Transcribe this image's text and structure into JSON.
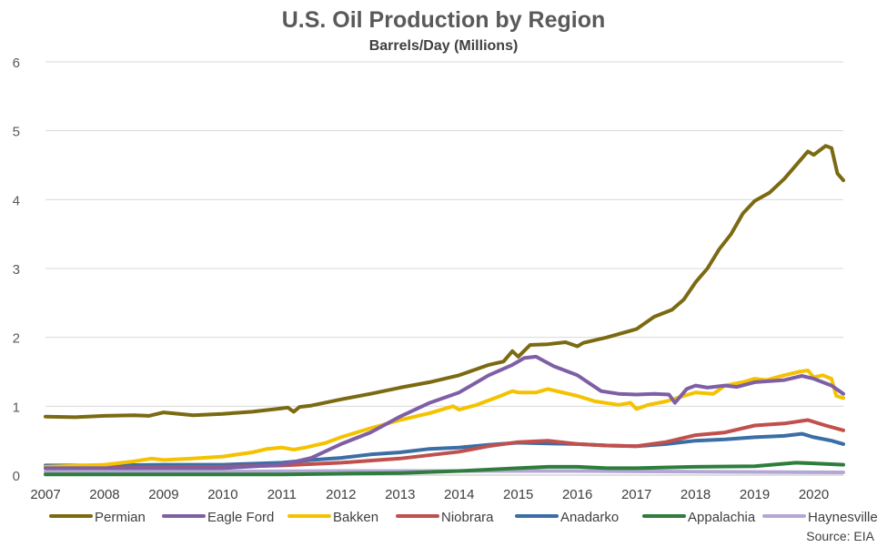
{
  "chart_data": {
    "type": "line",
    "title": "U.S. Oil Production by Region",
    "subtitle": "Barrels/Day (Millions)",
    "source": "Source: EIA",
    "xlim": [
      2007,
      2020.5
    ],
    "ylim": [
      0,
      6
    ],
    "x_ticks": [
      "2007",
      "2008",
      "2009",
      "2010",
      "2011",
      "2012",
      "2013",
      "2014",
      "2015",
      "2016",
      "2017",
      "2018",
      "2019",
      "2020"
    ],
    "y_ticks": [
      "6",
      "5",
      "4",
      "3",
      "2",
      "1",
      "0"
    ],
    "grid": true,
    "legend": "bottom",
    "series": [
      {
        "name": "Permian",
        "color": "#7a6a12",
        "points": [
          [
            2007.0,
            0.85
          ],
          [
            2007.5,
            0.84
          ],
          [
            2008.0,
            0.86
          ],
          [
            2008.5,
            0.87
          ],
          [
            2008.75,
            0.86
          ],
          [
            2009.0,
            0.91
          ],
          [
            2009.5,
            0.87
          ],
          [
            2010.0,
            0.89
          ],
          [
            2010.5,
            0.92
          ],
          [
            2011.0,
            0.97
          ],
          [
            2011.1,
            0.98
          ],
          [
            2011.2,
            0.92
          ],
          [
            2011.3,
            0.99
          ],
          [
            2011.5,
            1.01
          ],
          [
            2012.0,
            1.1
          ],
          [
            2012.5,
            1.18
          ],
          [
            2013.0,
            1.27
          ],
          [
            2013.5,
            1.35
          ],
          [
            2014.0,
            1.45
          ],
          [
            2014.5,
            1.6
          ],
          [
            2014.75,
            1.65
          ],
          [
            2014.9,
            1.8
          ],
          [
            2015.0,
            1.72
          ],
          [
            2015.2,
            1.89
          ],
          [
            2015.5,
            1.9
          ],
          [
            2015.8,
            1.93
          ],
          [
            2016.0,
            1.87
          ],
          [
            2016.1,
            1.92
          ],
          [
            2016.5,
            2.0
          ],
          [
            2017.0,
            2.12
          ],
          [
            2017.3,
            2.3
          ],
          [
            2017.6,
            2.4
          ],
          [
            2017.8,
            2.55
          ],
          [
            2018.0,
            2.8
          ],
          [
            2018.2,
            3.0
          ],
          [
            2018.4,
            3.28
          ],
          [
            2018.6,
            3.5
          ],
          [
            2018.8,
            3.8
          ],
          [
            2019.0,
            3.98
          ],
          [
            2019.25,
            4.1
          ],
          [
            2019.5,
            4.3
          ],
          [
            2019.75,
            4.55
          ],
          [
            2019.9,
            4.7
          ],
          [
            2020.0,
            4.65
          ],
          [
            2020.2,
            4.78
          ],
          [
            2020.3,
            4.75
          ],
          [
            2020.4,
            4.38
          ],
          [
            2020.5,
            4.28
          ]
        ]
      },
      {
        "name": "Eagle Ford",
        "color": "#7e5fa6",
        "points": [
          [
            2007.0,
            0.1
          ],
          [
            2009.0,
            0.1
          ],
          [
            2010.0,
            0.1
          ],
          [
            2011.0,
            0.15
          ],
          [
            2011.5,
            0.25
          ],
          [
            2012.0,
            0.45
          ],
          [
            2012.5,
            0.62
          ],
          [
            2013.0,
            0.85
          ],
          [
            2013.5,
            1.05
          ],
          [
            2014.0,
            1.2
          ],
          [
            2014.5,
            1.45
          ],
          [
            2014.9,
            1.6
          ],
          [
            2015.1,
            1.7
          ],
          [
            2015.3,
            1.72
          ],
          [
            2015.6,
            1.58
          ],
          [
            2016.0,
            1.45
          ],
          [
            2016.4,
            1.22
          ],
          [
            2016.7,
            1.18
          ],
          [
            2017.0,
            1.17
          ],
          [
            2017.3,
            1.18
          ],
          [
            2017.55,
            1.17
          ],
          [
            2017.65,
            1.05
          ],
          [
            2017.85,
            1.25
          ],
          [
            2018.0,
            1.3
          ],
          [
            2018.2,
            1.27
          ],
          [
            2018.5,
            1.3
          ],
          [
            2018.7,
            1.28
          ],
          [
            2019.0,
            1.35
          ],
          [
            2019.5,
            1.38
          ],
          [
            2019.8,
            1.44
          ],
          [
            2020.0,
            1.4
          ],
          [
            2020.3,
            1.3
          ],
          [
            2020.5,
            1.18
          ]
        ]
      },
      {
        "name": "Bakken",
        "color": "#f5c200",
        "points": [
          [
            2007.0,
            0.12
          ],
          [
            2008.0,
            0.15
          ],
          [
            2008.5,
            0.2
          ],
          [
            2008.8,
            0.24
          ],
          [
            2009.0,
            0.22
          ],
          [
            2009.5,
            0.24
          ],
          [
            2010.0,
            0.27
          ],
          [
            2010.5,
            0.33
          ],
          [
            2010.75,
            0.38
          ],
          [
            2011.0,
            0.4
          ],
          [
            2011.2,
            0.37
          ],
          [
            2011.4,
            0.4
          ],
          [
            2011.75,
            0.47
          ],
          [
            2012.0,
            0.55
          ],
          [
            2012.5,
            0.68
          ],
          [
            2013.0,
            0.8
          ],
          [
            2013.5,
            0.9
          ],
          [
            2013.9,
            1.0
          ],
          [
            2014.0,
            0.95
          ],
          [
            2014.3,
            1.02
          ],
          [
            2014.7,
            1.15
          ],
          [
            2014.9,
            1.22
          ],
          [
            2015.0,
            1.2
          ],
          [
            2015.3,
            1.2
          ],
          [
            2015.5,
            1.25
          ],
          [
            2016.0,
            1.15
          ],
          [
            2016.3,
            1.07
          ],
          [
            2016.7,
            1.02
          ],
          [
            2016.9,
            1.05
          ],
          [
            2017.0,
            0.96
          ],
          [
            2017.2,
            1.02
          ],
          [
            2017.5,
            1.07
          ],
          [
            2017.8,
            1.15
          ],
          [
            2018.0,
            1.2
          ],
          [
            2018.3,
            1.18
          ],
          [
            2018.5,
            1.3
          ],
          [
            2018.8,
            1.35
          ],
          [
            2019.0,
            1.4
          ],
          [
            2019.2,
            1.38
          ],
          [
            2019.5,
            1.45
          ],
          [
            2019.75,
            1.5
          ],
          [
            2019.9,
            1.52
          ],
          [
            2020.0,
            1.42
          ],
          [
            2020.15,
            1.45
          ],
          [
            2020.3,
            1.4
          ],
          [
            2020.38,
            1.15
          ],
          [
            2020.5,
            1.12
          ]
        ]
      },
      {
        "name": "Niobrara",
        "color": "#c0504d",
        "points": [
          [
            2007.0,
            0.1
          ],
          [
            2010.0,
            0.12
          ],
          [
            2011.0,
            0.14
          ],
          [
            2012.0,
            0.18
          ],
          [
            2013.0,
            0.24
          ],
          [
            2014.0,
            0.34
          ],
          [
            2014.5,
            0.42
          ],
          [
            2015.0,
            0.48
          ],
          [
            2015.5,
            0.5
          ],
          [
            2016.0,
            0.45
          ],
          [
            2016.5,
            0.43
          ],
          [
            2017.0,
            0.42
          ],
          [
            2017.5,
            0.48
          ],
          [
            2018.0,
            0.58
          ],
          [
            2018.5,
            0.62
          ],
          [
            2019.0,
            0.72
          ],
          [
            2019.5,
            0.75
          ],
          [
            2019.9,
            0.8
          ],
          [
            2020.2,
            0.72
          ],
          [
            2020.5,
            0.65
          ]
        ]
      },
      {
        "name": "Anadarko",
        "color": "#3b6ea5",
        "points": [
          [
            2007.0,
            0.14
          ],
          [
            2008.0,
            0.14
          ],
          [
            2009.0,
            0.15
          ],
          [
            2010.0,
            0.15
          ],
          [
            2011.0,
            0.18
          ],
          [
            2011.5,
            0.22
          ],
          [
            2012.0,
            0.25
          ],
          [
            2012.5,
            0.3
          ],
          [
            2013.0,
            0.33
          ],
          [
            2013.5,
            0.38
          ],
          [
            2014.0,
            0.4
          ],
          [
            2014.5,
            0.44
          ],
          [
            2015.0,
            0.47
          ],
          [
            2015.5,
            0.46
          ],
          [
            2016.0,
            0.45
          ],
          [
            2016.5,
            0.43
          ],
          [
            2017.0,
            0.42
          ],
          [
            2017.5,
            0.45
          ],
          [
            2018.0,
            0.5
          ],
          [
            2018.5,
            0.52
          ],
          [
            2019.0,
            0.55
          ],
          [
            2019.5,
            0.57
          ],
          [
            2019.8,
            0.6
          ],
          [
            2020.0,
            0.55
          ],
          [
            2020.3,
            0.5
          ],
          [
            2020.5,
            0.45
          ]
        ]
      },
      {
        "name": "Appalachia",
        "color": "#2e7d3c",
        "points": [
          [
            2007.0,
            0.01
          ],
          [
            2011.0,
            0.01
          ],
          [
            2012.0,
            0.02
          ],
          [
            2013.0,
            0.03
          ],
          [
            2014.0,
            0.06
          ],
          [
            2015.0,
            0.1
          ],
          [
            2015.5,
            0.12
          ],
          [
            2016.0,
            0.12
          ],
          [
            2016.5,
            0.1
          ],
          [
            2017.0,
            0.1
          ],
          [
            2018.0,
            0.12
          ],
          [
            2019.0,
            0.13
          ],
          [
            2019.7,
            0.18
          ],
          [
            2020.0,
            0.17
          ],
          [
            2020.5,
            0.15
          ]
        ]
      },
      {
        "name": "Haynesville",
        "color": "#b4a7d6",
        "points": [
          [
            2007.0,
            0.05
          ],
          [
            2010.0,
            0.05
          ],
          [
            2012.0,
            0.06
          ],
          [
            2014.0,
            0.06
          ],
          [
            2016.0,
            0.06
          ],
          [
            2018.0,
            0.05
          ],
          [
            2020.5,
            0.04
          ]
        ]
      }
    ]
  }
}
